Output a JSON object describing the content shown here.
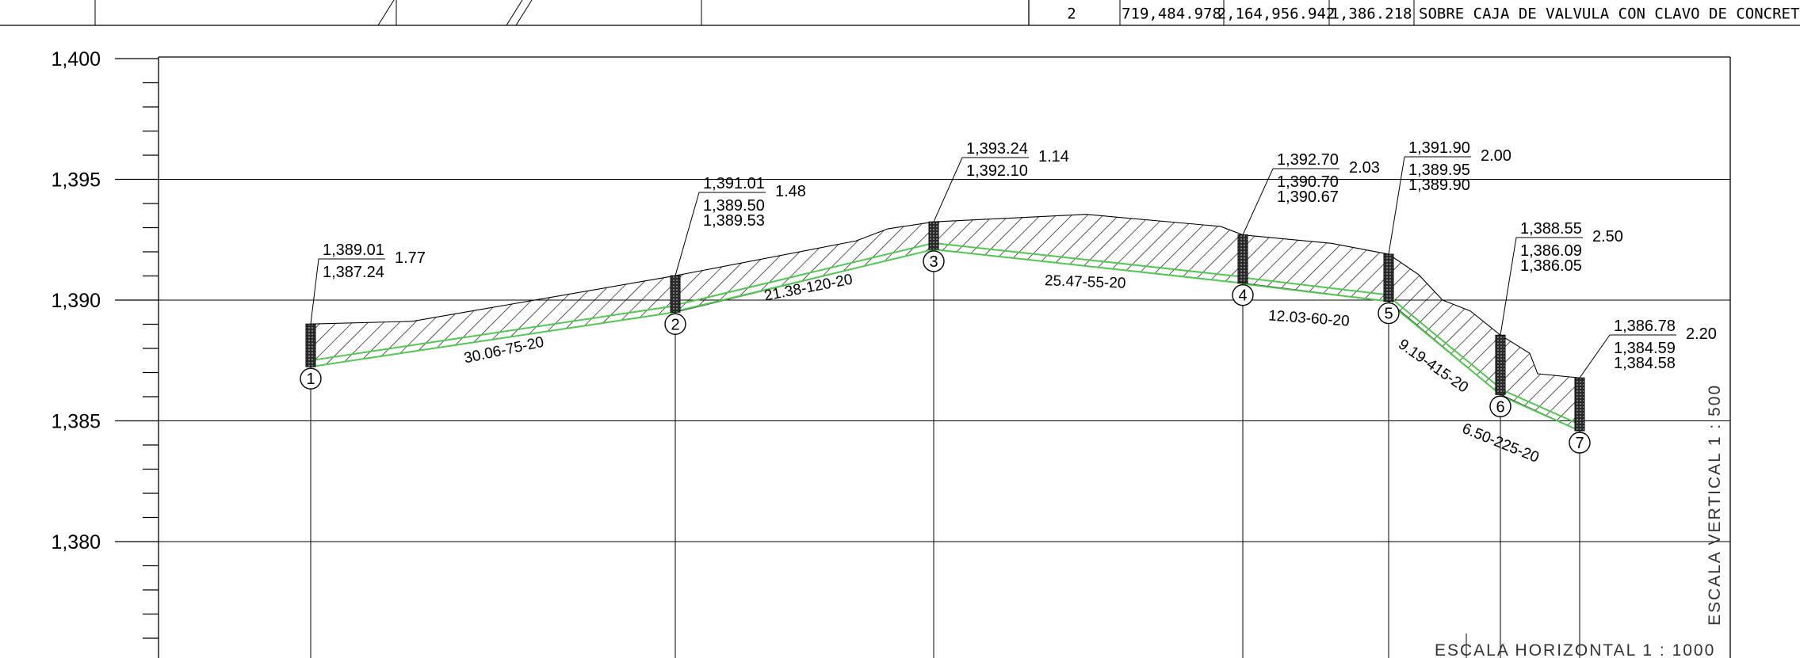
{
  "table_row": {
    "no": "2",
    "x": "719,484.978",
    "y": "2,164,956.942",
    "z": "1,386.218",
    "description": "SOBRE CAJA DE VALVULA CON CLAVO DE CONCRETO"
  },
  "y_axis": {
    "labels": [
      "1,400",
      "1,395",
      "1,390",
      "1,385",
      "1,380"
    ],
    "range": [
      1376,
      1400
    ],
    "major_step": 5,
    "minor_step": 1
  },
  "scales": {
    "vertical": "ESCALA VERTICAL 1 : 500",
    "horizontal": "ESCALA HORIZONTAL 1 : 1000"
  },
  "stations": [
    {
      "num": "1",
      "terrain": "1,389.01",
      "depth": "1.77",
      "inverts": [
        "1,387.24"
      ]
    },
    {
      "num": "2",
      "terrain": "1,391.01",
      "depth": "1.48",
      "inverts": [
        "1,389.50",
        "1,389.53"
      ]
    },
    {
      "num": "3",
      "terrain": "1,393.24",
      "depth": "1.14",
      "inverts": [
        "1,392.10"
      ]
    },
    {
      "num": "4",
      "terrain": "1,392.70",
      "depth": "2.03",
      "inverts": [
        "1,390.70",
        "1,390.67"
      ]
    },
    {
      "num": "5",
      "terrain": "1,391.90",
      "depth": "2.00",
      "inverts": [
        "1,389.95",
        "1,389.90"
      ]
    },
    {
      "num": "6",
      "terrain": "1,388.55",
      "depth": "2.50",
      "inverts": [
        "1,386.09",
        "1,386.05"
      ]
    },
    {
      "num": "7",
      "terrain": "1,386.78",
      "depth": "2.20",
      "inverts": [
        "1,384.59",
        "1,384.58"
      ]
    }
  ],
  "segments": [
    {
      "label": "30.06-75-20",
      "length_m": 30.06
    },
    {
      "label": "21.38-120-20",
      "length_m": 21.38
    },
    {
      "label": "25.47-55-20",
      "length_m": 25.47
    },
    {
      "label": "12.03-60-20",
      "length_m": 12.03
    },
    {
      "label": "9.19-415-20",
      "length_m": 9.19
    },
    {
      "label": "6.50-225-20",
      "length_m": 6.5
    }
  ],
  "colors": {
    "pipe": "#4dc94d",
    "line": "#000000",
    "hatch": "#000000"
  }
}
